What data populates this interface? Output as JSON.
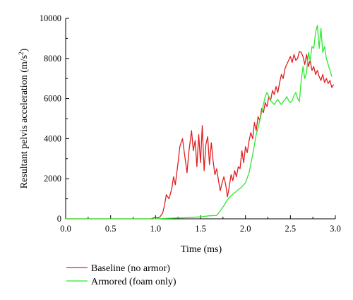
{
  "chart_data": {
    "type": "line",
    "title": "",
    "xlabel": "Time (ms)",
    "ylabel": "Resultant pelvis acceleration (m/s",
    "ylabel_unit_exponent": "2",
    "ylabel_close": ")",
    "xlim": [
      0.0,
      3.0
    ],
    "ylim": [
      0,
      10000
    ],
    "x_ticks": [
      0.0,
      0.5,
      1.0,
      1.5,
      2.0,
      2.5,
      3.0
    ],
    "x_tick_labels": [
      "0.0",
      "0.5",
      "1.0",
      "1.5",
      "2.0",
      "2.5",
      "3.0"
    ],
    "y_ticks": [
      0,
      2000,
      4000,
      6000,
      8000,
      10000
    ],
    "y_tick_labels": [
      "0",
      "2000",
      "4000",
      "6000",
      "8000",
      "10000"
    ],
    "grid": false,
    "legend_position": "bottom-left",
    "series": [
      {
        "name": "Baseline (no armor)",
        "color": "#e02020",
        "x": [
          0.0,
          0.5,
          0.95,
          1.0,
          1.02,
          1.05,
          1.08,
          1.1,
          1.12,
          1.15,
          1.18,
          1.2,
          1.22,
          1.25,
          1.27,
          1.3,
          1.32,
          1.35,
          1.37,
          1.4,
          1.42,
          1.44,
          1.46,
          1.48,
          1.5,
          1.52,
          1.54,
          1.56,
          1.58,
          1.6,
          1.62,
          1.64,
          1.66,
          1.68,
          1.7,
          1.72,
          1.74,
          1.76,
          1.78,
          1.8,
          1.82,
          1.84,
          1.86,
          1.88,
          1.9,
          1.92,
          1.94,
          1.96,
          1.98,
          2.0,
          2.02,
          2.04,
          2.06,
          2.08,
          2.1,
          2.12,
          2.14,
          2.16,
          2.18,
          2.2,
          2.22,
          2.24,
          2.26,
          2.28,
          2.3,
          2.32,
          2.34,
          2.36,
          2.38,
          2.4,
          2.42,
          2.44,
          2.46,
          2.48,
          2.5,
          2.52,
          2.54,
          2.56,
          2.58,
          2.6,
          2.62,
          2.64,
          2.66,
          2.68,
          2.7,
          2.72,
          2.74,
          2.76,
          2.78,
          2.8,
          2.82,
          2.84,
          2.86,
          2.88,
          2.9,
          2.92,
          2.94,
          2.96,
          2.98
        ],
        "y": [
          0,
          0,
          0,
          80,
          40,
          100,
          300,
          700,
          1200,
          1000,
          1500,
          2100,
          1700,
          2800,
          3600,
          4000,
          3300,
          2300,
          3300,
          4400,
          3400,
          3900,
          2600,
          4200,
          2800,
          4650,
          2400,
          3700,
          4100,
          2700,
          3800,
          2900,
          2200,
          2500,
          1900,
          1400,
          1800,
          2100,
          1700,
          1100,
          1600,
          2200,
          1900,
          2400,
          2100,
          2600,
          2500,
          3400,
          2800,
          3600,
          3300,
          3900,
          4300,
          4000,
          4800,
          4400,
          5100,
          4900,
          5500,
          5300,
          5800,
          5600,
          6100,
          5900,
          6400,
          6200,
          6600,
          6300,
          6800,
          7200,
          7000,
          7500,
          7700,
          7900,
          8100,
          7800,
          8200,
          7900,
          8000,
          8350,
          8300,
          8100,
          7700,
          8200,
          7600,
          7900,
          7400,
          7600,
          7200,
          7400,
          7100,
          6900,
          7200,
          6800,
          7000,
          6750,
          6900,
          6550,
          6700
        ]
      },
      {
        "name": "Armored (foam only)",
        "color": "#2ee82e",
        "x": [
          0.0,
          0.5,
          1.0,
          1.1,
          1.3,
          1.5,
          1.6,
          1.68,
          1.72,
          1.76,
          1.8,
          1.84,
          1.88,
          1.92,
          1.96,
          2.0,
          2.04,
          2.08,
          2.12,
          2.16,
          2.2,
          2.22,
          2.24,
          2.26,
          2.28,
          2.3,
          2.32,
          2.34,
          2.36,
          2.38,
          2.4,
          2.42,
          2.44,
          2.46,
          2.48,
          2.5,
          2.52,
          2.54,
          2.56,
          2.58,
          2.6,
          2.62,
          2.64,
          2.66,
          2.68,
          2.7,
          2.72,
          2.74,
          2.76,
          2.78,
          2.8,
          2.82,
          2.84,
          2.86,
          2.88,
          2.9,
          2.92,
          2.94,
          2.96
        ],
        "y": [
          0,
          0,
          0,
          20,
          50,
          100,
          150,
          170,
          400,
          650,
          950,
          1150,
          1300,
          1450,
          1600,
          1800,
          2300,
          3200,
          4200,
          4900,
          5700,
          6100,
          6300,
          6100,
          5900,
          5800,
          5700,
          5850,
          5950,
          5800,
          5700,
          5850,
          5950,
          6100,
          5900,
          5800,
          5900,
          6150,
          6300,
          6000,
          5850,
          6900,
          7600,
          7000,
          7300,
          8300,
          7900,
          8600,
          8500,
          9300,
          9650,
          8500,
          9500,
          8300,
          8600,
          8000,
          7700,
          7400,
          7100
        ]
      }
    ]
  }
}
